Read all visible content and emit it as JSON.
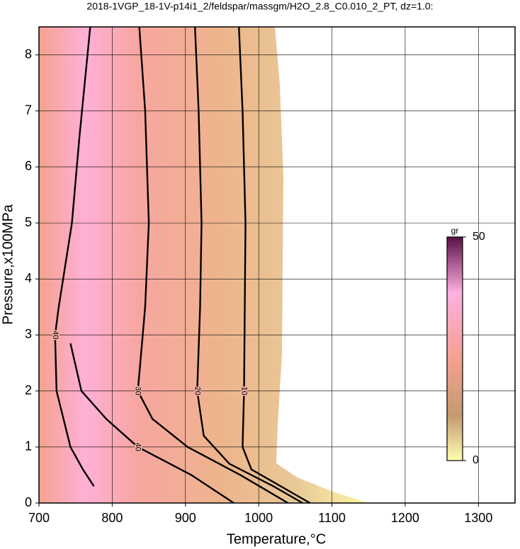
{
  "chart_data": {
    "type": "contour",
    "title": "2018-1VGP_18-1V-p14i1_2/feldspar/massgm/H2O_2.8_C0.010_2_PT, dz=1.0:",
    "x_label": "Temperature,°C",
    "y_label": "Pressure,x100MPa",
    "xlim": [
      700,
      1350
    ],
    "xticks": [
      700,
      800,
      900,
      1000,
      1100,
      1200,
      1300
    ],
    "ylim": [
      0,
      8.5
    ],
    "yticks": [
      0,
      1,
      2,
      3,
      4,
      5,
      6,
      7,
      8
    ],
    "grid": true,
    "series": [
      {
        "level": 10,
        "x": [
          973,
          978,
          982,
          981,
          980,
          978,
          990,
          1030,
          1070
        ],
        "y": [
          8.5,
          7,
          5,
          3.5,
          2,
          1,
          0.6,
          0.3,
          0
        ]
      },
      {
        "level": 20,
        "x": [
          913,
          918,
          922,
          920,
          916,
          925,
          960,
          1020,
          1060
        ],
        "y": [
          8.5,
          7,
          5,
          3.5,
          2,
          1.2,
          0.7,
          0.3,
          0
        ]
      },
      {
        "level": 30,
        "x": [
          837,
          845,
          850,
          845,
          835,
          855,
          903,
          975,
          1040
        ],
        "y": [
          8.5,
          7,
          5,
          3.5,
          2,
          1.5,
          1,
          0.5,
          0
        ]
      },
      {
        "level": 40,
        "x": [
          770,
          755,
          745,
          727,
          722,
          724,
          743,
          760,
          775
        ],
        "y": [
          8.5,
          6.5,
          5,
          3.5,
          3,
          2,
          1,
          0.6,
          0.3
        ]
      },
      {
        "level": 40,
        "x": [
          743,
          758,
          792,
          835,
          908,
          966
        ],
        "y": [
          2.85,
          2,
          1.5,
          1,
          0.5,
          0
        ]
      }
    ],
    "colorbar": {
      "label": "gr",
      "lim": [
        0,
        50
      ],
      "ticks": [
        0,
        50
      ]
    }
  }
}
